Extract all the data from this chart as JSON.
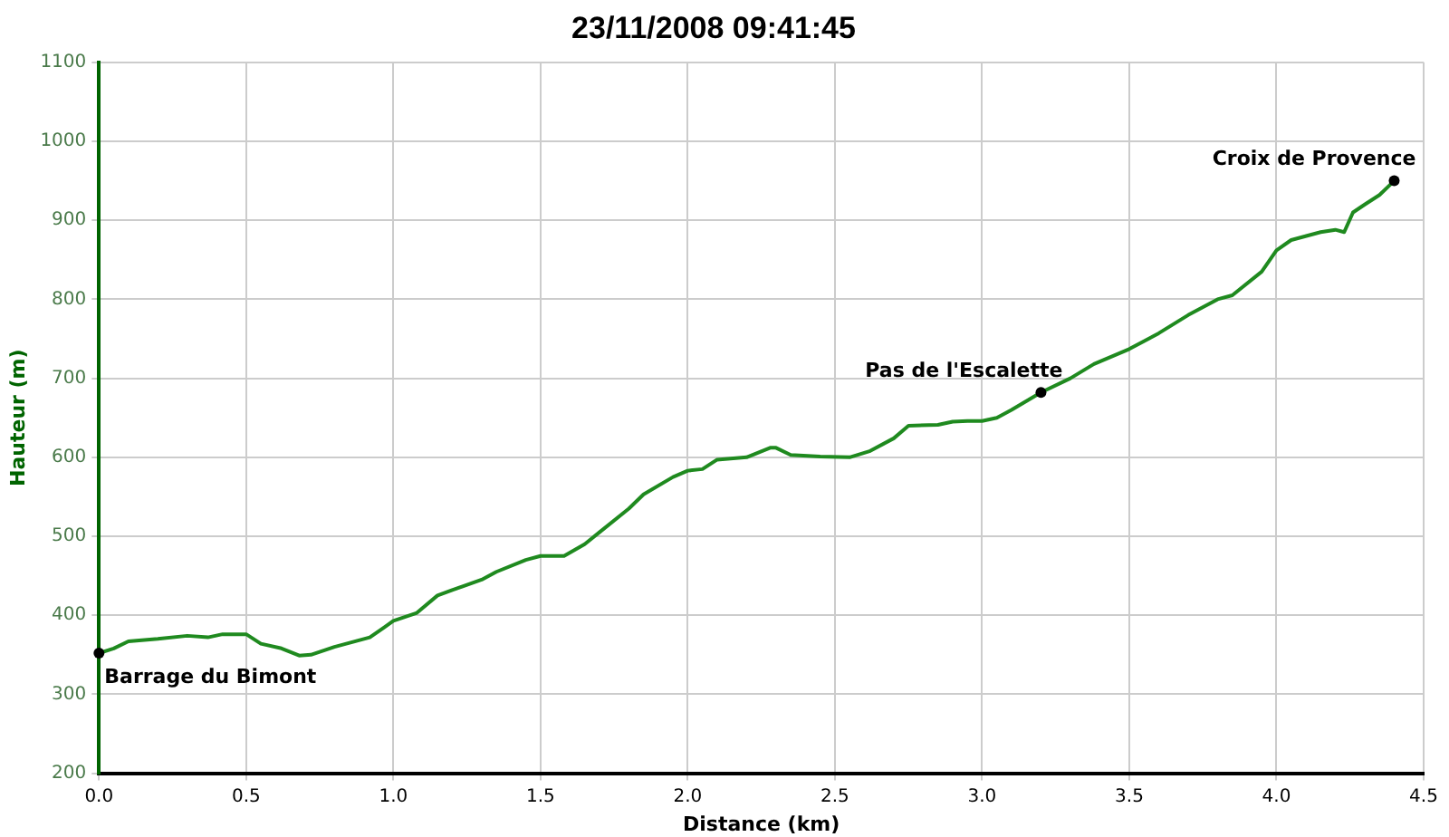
{
  "chart_data": {
    "type": "line",
    "title": "23/11/2008 09:41:45",
    "xlabel": "Distance (km)",
    "ylabel": "Hauteur (m)",
    "x": [
      0,
      0.05,
      0.1,
      0.2,
      0.3,
      0.37,
      0.42,
      0.5,
      0.55,
      0.62,
      0.68,
      0.72,
      0.8,
      0.9,
      0.92,
      0.97,
      1.0,
      1.08,
      1.15,
      1.2,
      1.3,
      1.35,
      1.45,
      1.5,
      1.58,
      1.65,
      1.7,
      1.8,
      1.85,
      1.95,
      2.0,
      2.05,
      2.1,
      2.2,
      2.28,
      2.3,
      2.35,
      2.45,
      2.55,
      2.62,
      2.7,
      2.75,
      2.85,
      2.9,
      2.95,
      3.0,
      3.05,
      3.1,
      3.2,
      3.3,
      3.38,
      3.5,
      3.6,
      3.7,
      3.8,
      3.85,
      3.95,
      4.0,
      4.05,
      4.15,
      4.2,
      4.23,
      4.26,
      4.3,
      4.35,
      4.4
    ],
    "series": [
      {
        "color": "#1f8a1f",
        "values": [
          352,
          358,
          367,
          370,
          374,
          372,
          376,
          376,
          364,
          358,
          349,
          350,
          360,
          370,
          372,
          385,
          393,
          403,
          425,
          432,
          445,
          455,
          470,
          475,
          475,
          490,
          505,
          535,
          553,
          575,
          583,
          585,
          597,
          600,
          612,
          612,
          603,
          601,
          600,
          608,
          624,
          640,
          641,
          645,
          646,
          646,
          650,
          660,
          682,
          700,
          718,
          737,
          757,
          780,
          800,
          805,
          835,
          862,
          875,
          885,
          888,
          885,
          910,
          920,
          932,
          950
        ]
      }
    ],
    "xlim": [
      0,
      4.5
    ],
    "xticks": [
      {
        "value": 0,
        "label": "0.0"
      },
      {
        "value": 0.5,
        "label": "0.5"
      },
      {
        "value": 1,
        "label": "1.0"
      },
      {
        "value": 1.5,
        "label": "1.5"
      },
      {
        "value": 2,
        "label": "2.0"
      },
      {
        "value": 2.5,
        "label": "2.5"
      },
      {
        "value": 3,
        "label": "3.0"
      },
      {
        "value": 3.5,
        "label": "3.5"
      },
      {
        "value": 4,
        "label": "4.0"
      },
      {
        "value": 4.5,
        "label": "4.5"
      }
    ],
    "ylim": [
      200,
      1100
    ],
    "yticks": [
      200,
      300,
      400,
      500,
      600,
      700,
      800,
      900,
      1000,
      1100
    ],
    "grid": true,
    "legend": false,
    "marker": "none",
    "line_style": "solid",
    "annotations": [
      {
        "text": "Barrage du Bimont",
        "x": 0,
        "y": 352
      },
      {
        "text": "Pas de l'Escalette",
        "x": 3.2,
        "y": 682
      },
      {
        "text": "Croix de Provence",
        "x": 4.4,
        "y": 950
      }
    ]
  }
}
